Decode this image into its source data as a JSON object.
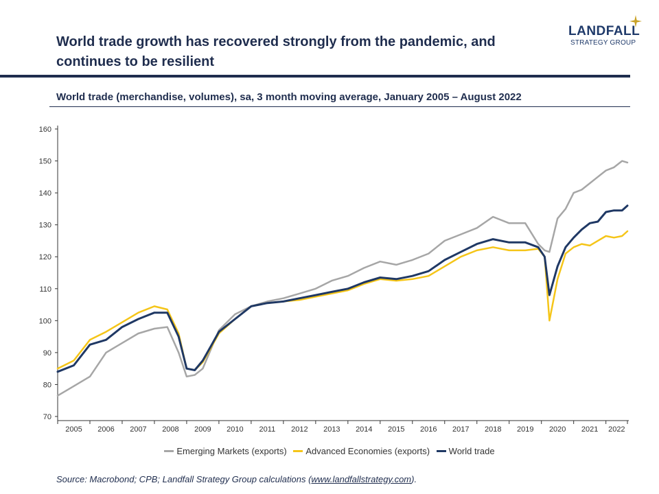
{
  "header": {
    "title": "World trade growth has recovered strongly from the pandemic, and continues to be resilient",
    "logo_name": "LANDFALL",
    "logo_sub": "STRATEGY GROUP",
    "logo_icon": "star-icon",
    "colors": {
      "navy": "#1f2d4e",
      "logo_star": "#c9a227"
    }
  },
  "subtitle": "World trade (merchandise, volumes), sa, 3 month moving average, January 2005 – August 2022",
  "source": {
    "prefix": "Source: Macrobond; CPB; Landfall Strategy Group calculations (",
    "link": "www.landfallstrategy.com",
    "suffix": ")."
  },
  "chart_data": {
    "type": "line",
    "title": "World trade (merchandise, volumes), sa, 3 month moving average, January 2005 – August 2022",
    "xlabel": "",
    "ylabel": "",
    "ylim": [
      70,
      160
    ],
    "yticks": [
      70,
      80,
      90,
      100,
      110,
      120,
      130,
      140,
      150,
      160
    ],
    "xlim": [
      2005.0,
      2022.667
    ],
    "xtick_labels": [
      "2005",
      "2006",
      "2007",
      "2008",
      "2009",
      "2010",
      "2011",
      "2012",
      "2013",
      "2014",
      "2015",
      "2016",
      "2017",
      "2018",
      "2019",
      "2020",
      "2021",
      "2022"
    ],
    "grid": false,
    "legend": "bottom",
    "x": [
      2005.0,
      2005.5,
      2006.0,
      2006.5,
      2007.0,
      2007.5,
      2008.0,
      2008.4,
      2008.75,
      2009.0,
      2009.25,
      2009.5,
      2009.75,
      2010.0,
      2010.5,
      2011.0,
      2011.5,
      2012.0,
      2012.5,
      2013.0,
      2013.5,
      2014.0,
      2014.5,
      2015.0,
      2015.5,
      2016.0,
      2016.5,
      2017.0,
      2017.5,
      2018.0,
      2018.5,
      2019.0,
      2019.5,
      2019.9,
      2020.1,
      2020.25,
      2020.5,
      2020.75,
      2021.0,
      2021.25,
      2021.5,
      2021.75,
      2022.0,
      2022.25,
      2022.5,
      2022.667
    ],
    "series": [
      {
        "name": "Emerging Markets (exports)",
        "color": "#a6a6a6",
        "values": [
          76.5,
          79.5,
          82.5,
          90.0,
          93.0,
          96.0,
          97.5,
          98.0,
          90.0,
          82.5,
          83.0,
          85.0,
          91.0,
          97.0,
          102.0,
          104.5,
          106.0,
          107.0,
          108.5,
          110.0,
          112.5,
          114.0,
          116.5,
          118.5,
          117.5,
          119.0,
          121.0,
          125.0,
          127.0,
          129.0,
          132.5,
          130.5,
          130.5,
          124.0,
          122.0,
          121.5,
          132.0,
          135.0,
          140.0,
          141.0,
          143.0,
          145.0,
          147.0,
          148.0,
          150.0,
          149.5
        ]
      },
      {
        "name": "Advanced Economies (exports)",
        "color": "#f5c518",
        "values": [
          85.0,
          87.5,
          94.0,
          96.5,
          99.5,
          102.5,
          104.5,
          103.5,
          96.0,
          85.0,
          84.5,
          87.0,
          91.5,
          96.0,
          100.5,
          104.5,
          105.5,
          106.0,
          106.5,
          107.5,
          108.5,
          109.5,
          111.5,
          113.0,
          112.5,
          113.0,
          114.0,
          117.0,
          120.0,
          122.0,
          123.0,
          122.0,
          122.0,
          122.5,
          120.0,
          100.0,
          113.0,
          121.0,
          123.0,
          124.0,
          123.5,
          125.0,
          126.5,
          126.0,
          126.5,
          128.0
        ]
      },
      {
        "name": "World trade",
        "color": "#1f3864",
        "values": [
          84.0,
          86.0,
          92.5,
          94.0,
          98.0,
          100.5,
          102.5,
          102.5,
          95.0,
          85.0,
          84.5,
          87.5,
          92.0,
          96.5,
          100.5,
          104.5,
          105.5,
          106.0,
          107.0,
          108.0,
          109.0,
          110.0,
          112.0,
          113.5,
          113.0,
          114.0,
          115.5,
          119.0,
          121.5,
          124.0,
          125.5,
          124.5,
          124.5,
          123.0,
          120.0,
          108.0,
          117.0,
          123.0,
          126.0,
          128.5,
          130.5,
          131.0,
          134.0,
          134.5,
          134.5,
          136.0
        ]
      }
    ]
  }
}
